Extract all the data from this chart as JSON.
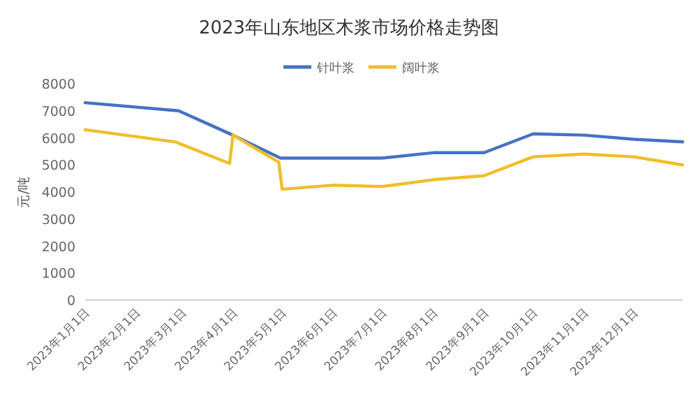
{
  "chart_data": {
    "type": "line",
    "title": "2023年山东地区木浆市场价格走势图",
    "ylabel": "元/吨",
    "legend": "top",
    "grid": false,
    "marker": "none",
    "line_style": "solid",
    "xlim": [
      "2023-01-01",
      "2023-12-31"
    ],
    "xticks": [
      {
        "value": "2023-01-01",
        "label": "2023年1月1日"
      },
      {
        "value": "2023-02-01",
        "label": "2023年2月1日"
      },
      {
        "value": "2023-03-01",
        "label": "2023年3月1日"
      },
      {
        "value": "2023-04-01",
        "label": "2023年4月1日"
      },
      {
        "value": "2023-05-01",
        "label": "2023年5月1日"
      },
      {
        "value": "2023-06-01",
        "label": "2023年6月1日"
      },
      {
        "value": "2023-07-01",
        "label": "2023年7月1日"
      },
      {
        "value": "2023-08-01",
        "label": "2023年8月1日"
      },
      {
        "value": "2023-09-01",
        "label": "2023年9月1日"
      },
      {
        "value": "2023-10-01",
        "label": "2023年10月1日"
      },
      {
        "value": "2023-11-01",
        "label": "2023年11月1日"
      },
      {
        "value": "2023-12-01",
        "label": "2023年12月1日"
      }
    ],
    "ylim": [
      0,
      8000
    ],
    "yticks": [
      0,
      1000,
      2000,
      3000,
      4000,
      5000,
      6000,
      7000,
      8000
    ],
    "series": [
      {
        "name": "针叶浆",
        "color": "#4472c4",
        "x": [
          "2023-01-01",
          "2023-02-27",
          "2023-04-01",
          "2023-04-30",
          "2023-06-01",
          "2023-07-01",
          "2023-08-01",
          "2023-09-01",
          "2023-10-01",
          "2023-11-01",
          "2023-12-01",
          "2023-12-31"
        ],
        "values": [
          7300,
          7000,
          6100,
          5250,
          5250,
          5250,
          5450,
          5450,
          6150,
          6100,
          5950,
          5850
        ]
      },
      {
        "name": "阔叶浆",
        "color": "#f0be28",
        "x": [
          "2023-01-01",
          "2023-02-25",
          "2023-03-30",
          "2023-04-01",
          "2023-04-29",
          "2023-05-01",
          "2023-06-01",
          "2023-07-01",
          "2023-08-01",
          "2023-09-01",
          "2023-10-01",
          "2023-11-01",
          "2023-12-01",
          "2023-12-31"
        ],
        "values": [
          6300,
          5850,
          5050,
          6100,
          5100,
          4100,
          4250,
          4200,
          4450,
          4600,
          5300,
          5400,
          5300,
          5000
        ]
      }
    ]
  }
}
